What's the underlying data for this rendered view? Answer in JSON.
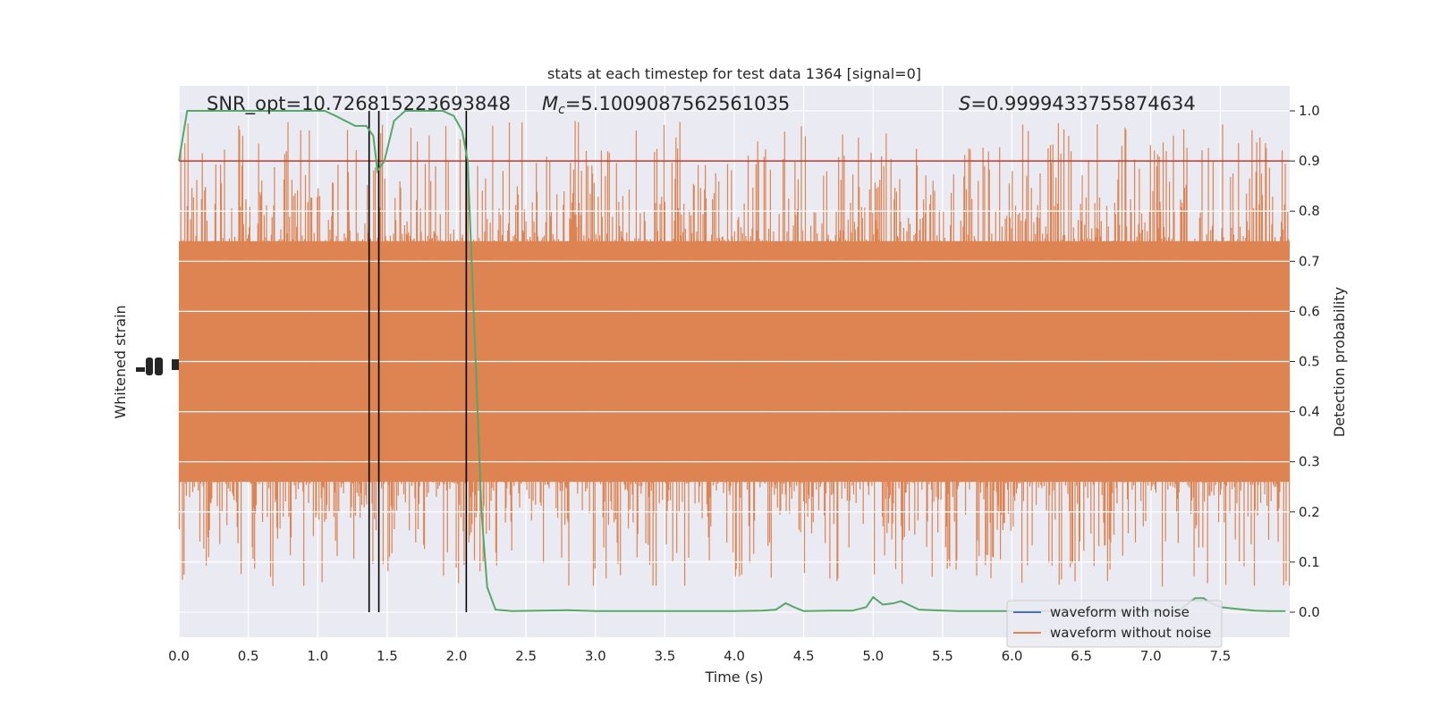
{
  "chart_data": {
    "type": "line",
    "title": "stats at each timestep for test data 1364 [signal=0]",
    "xlabel": "Time (s)",
    "ylabel_left": "Whitened strain",
    "ylabel_right": "Detection probability",
    "xlim": [
      0.0,
      8.0
    ],
    "ylim_right": [
      -0.05,
      1.05
    ],
    "x_ticks": [
      "0.0",
      "0.5",
      "1.0",
      "1.5",
      "2.0",
      "2.5",
      "3.0",
      "3.5",
      "4.0",
      "4.5",
      "5.0",
      "5.5",
      "6.0",
      "6.5",
      "7.0",
      "7.5"
    ],
    "y_ticks_right": [
      "0.0",
      "0.1",
      "0.2",
      "0.3",
      "0.4",
      "0.5",
      "0.6",
      "0.7",
      "0.8",
      "0.9",
      "1.0"
    ],
    "grid": true,
    "legend_location": "lower right",
    "annotations": {
      "snr": "SNR_opt=10.726815223693848",
      "mc_symbol": "M",
      "mc_subscript": "c",
      "mc_value": "=5.1009087562561035",
      "s_symbol": "S",
      "s_value": "=0.9999433755874634"
    },
    "threshold": {
      "value": 0.9,
      "color": "#c0392b"
    },
    "vlines": [
      1.37,
      1.44,
      2.07
    ],
    "series": [
      {
        "name": "waveform with noise",
        "color": "#4c72b0",
        "role": "legend-only"
      },
      {
        "name": "waveform without noise",
        "color": "#dd8452",
        "role": "strain-noise",
        "band_low": 0.26,
        "band_high": 0.74,
        "spike_low": 0.05,
        "spike_high": 0.98
      },
      {
        "color": "#55a868",
        "role": "detection-probability",
        "x": [
          0.0,
          0.06,
          0.13,
          0.3,
          0.6,
          0.9,
          1.05,
          1.13,
          1.2,
          1.27,
          1.35,
          1.4,
          1.43,
          1.48,
          1.55,
          1.63,
          1.7,
          1.8,
          1.9,
          1.98,
          2.04,
          2.08,
          2.13,
          2.18,
          2.22,
          2.28,
          2.4,
          2.6,
          2.8,
          3.0,
          3.2,
          3.5,
          3.8,
          4.0,
          4.2,
          4.3,
          4.37,
          4.43,
          4.5,
          4.7,
          4.85,
          4.95,
          5.0,
          5.07,
          5.15,
          5.2,
          5.33,
          5.6,
          6.0,
          6.5,
          7.0,
          7.2,
          7.32,
          7.38,
          7.42,
          7.5,
          7.6,
          7.75,
          7.85,
          7.97
        ],
        "y": [
          0.9,
          1.0,
          1.0,
          1.0,
          1.0,
          1.0,
          1.0,
          0.99,
          0.98,
          0.97,
          0.97,
          0.95,
          0.88,
          0.9,
          0.98,
          1.0,
          1.0,
          1.0,
          1.0,
          0.99,
          0.96,
          0.9,
          0.55,
          0.2,
          0.05,
          0.005,
          0.002,
          0.003,
          0.004,
          0.002,
          0.002,
          0.002,
          0.002,
          0.002,
          0.003,
          0.005,
          0.018,
          0.01,
          0.002,
          0.003,
          0.003,
          0.01,
          0.03,
          0.015,
          0.018,
          0.022,
          0.005,
          0.002,
          0.002,
          0.002,
          0.002,
          0.003,
          0.028,
          0.028,
          0.02,
          0.01,
          0.007,
          0.003,
          0.002,
          0.002
        ]
      }
    ]
  }
}
